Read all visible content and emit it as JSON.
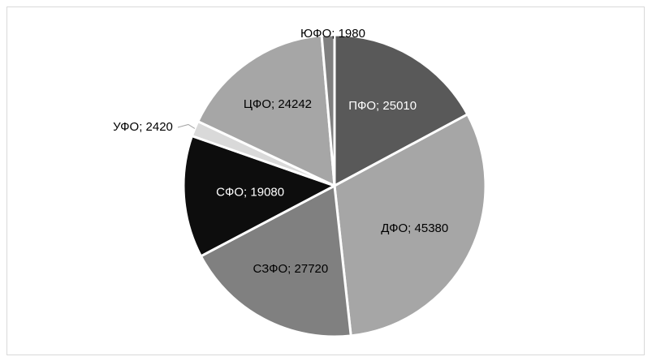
{
  "chart_data": {
    "type": "pie",
    "title": "",
    "slices": [
      {
        "label": "ПФО; 25010",
        "value": 25010,
        "color": "#595959",
        "text_color": "#ffffff"
      },
      {
        "label": "ДФО; 45380",
        "value": 45380,
        "color": "#a6a6a6",
        "text_color": "#000000"
      },
      {
        "label": "СЗФО; 27720",
        "value": 27720,
        "color": "#808080",
        "text_color": "#000000"
      },
      {
        "label": "СФО; 19080",
        "value": 19080,
        "color": "#0d0d0d",
        "text_color": "#ffffff"
      },
      {
        "label": "УФО; 2420",
        "value": 2420,
        "color": "#d9d9d9",
        "text_color": "#000000"
      },
      {
        "label": "ЦФО; 24242",
        "value": 24242,
        "color": "#a6a6a6",
        "text_color": "#000000"
      },
      {
        "label": "ЮФО; 1980",
        "value": 1980,
        "color": "#7f7f7f",
        "text_color": "#000000"
      }
    ],
    "legend": "none",
    "start_angle": "12 o'clock, clockwise"
  }
}
